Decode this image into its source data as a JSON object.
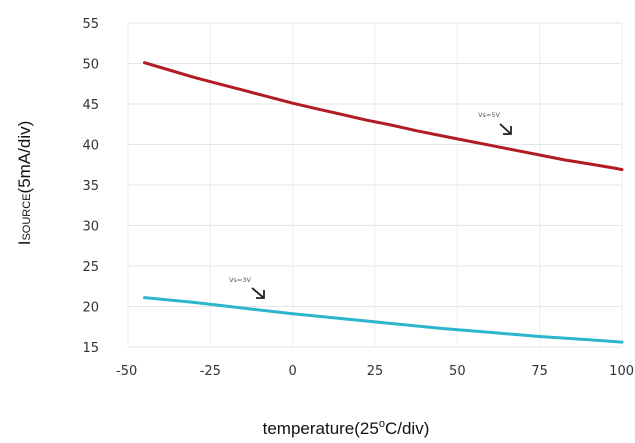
{
  "chart_data": {
    "type": "line",
    "x_ticks": [
      "-50",
      "-25",
      "0",
      "25",
      "50",
      "75",
      "100"
    ],
    "y_ticks": [
      "15",
      "20",
      "25",
      "30",
      "35",
      "40",
      "45",
      "50",
      "55"
    ],
    "xlim": [
      -50,
      100
    ],
    "ylim": [
      15,
      55
    ],
    "grid": true,
    "xlabel": {
      "prefix": "temperature(25",
      "sup": "o",
      "suffix": "C/div)"
    },
    "ylabel": {
      "main": "I",
      "sub": "SOURCE",
      "suffix": "(5mA/div)"
    },
    "series": [
      {
        "annotation": "Vs=5V",
        "color": "#b01c22",
        "x": [
          -45,
          -37.5,
          -30,
          -22.5,
          -15,
          -7.5,
          0,
          7.5,
          15,
          22.5,
          30,
          37.5,
          45,
          52.5,
          60,
          67.5,
          75,
          82.5,
          90,
          97.5,
          100
        ],
        "y": [
          50.1,
          49.2,
          48.3,
          47.5,
          46.7,
          45.9,
          45.1,
          44.4,
          43.7,
          43.0,
          42.4,
          41.7,
          41.1,
          40.5,
          39.9,
          39.3,
          38.7,
          38.1,
          37.6,
          37.1,
          36.9
        ]
      },
      {
        "annotation": "Vs=3V",
        "color": "#2cb6cc",
        "x": [
          -45,
          -30,
          -15,
          0,
          15,
          30,
          45,
          60,
          75,
          90,
          100
        ],
        "y": [
          21.1,
          20.5,
          19.8,
          19.1,
          18.5,
          17.9,
          17.3,
          16.8,
          16.3,
          15.9,
          15.6
        ]
      }
    ]
  }
}
